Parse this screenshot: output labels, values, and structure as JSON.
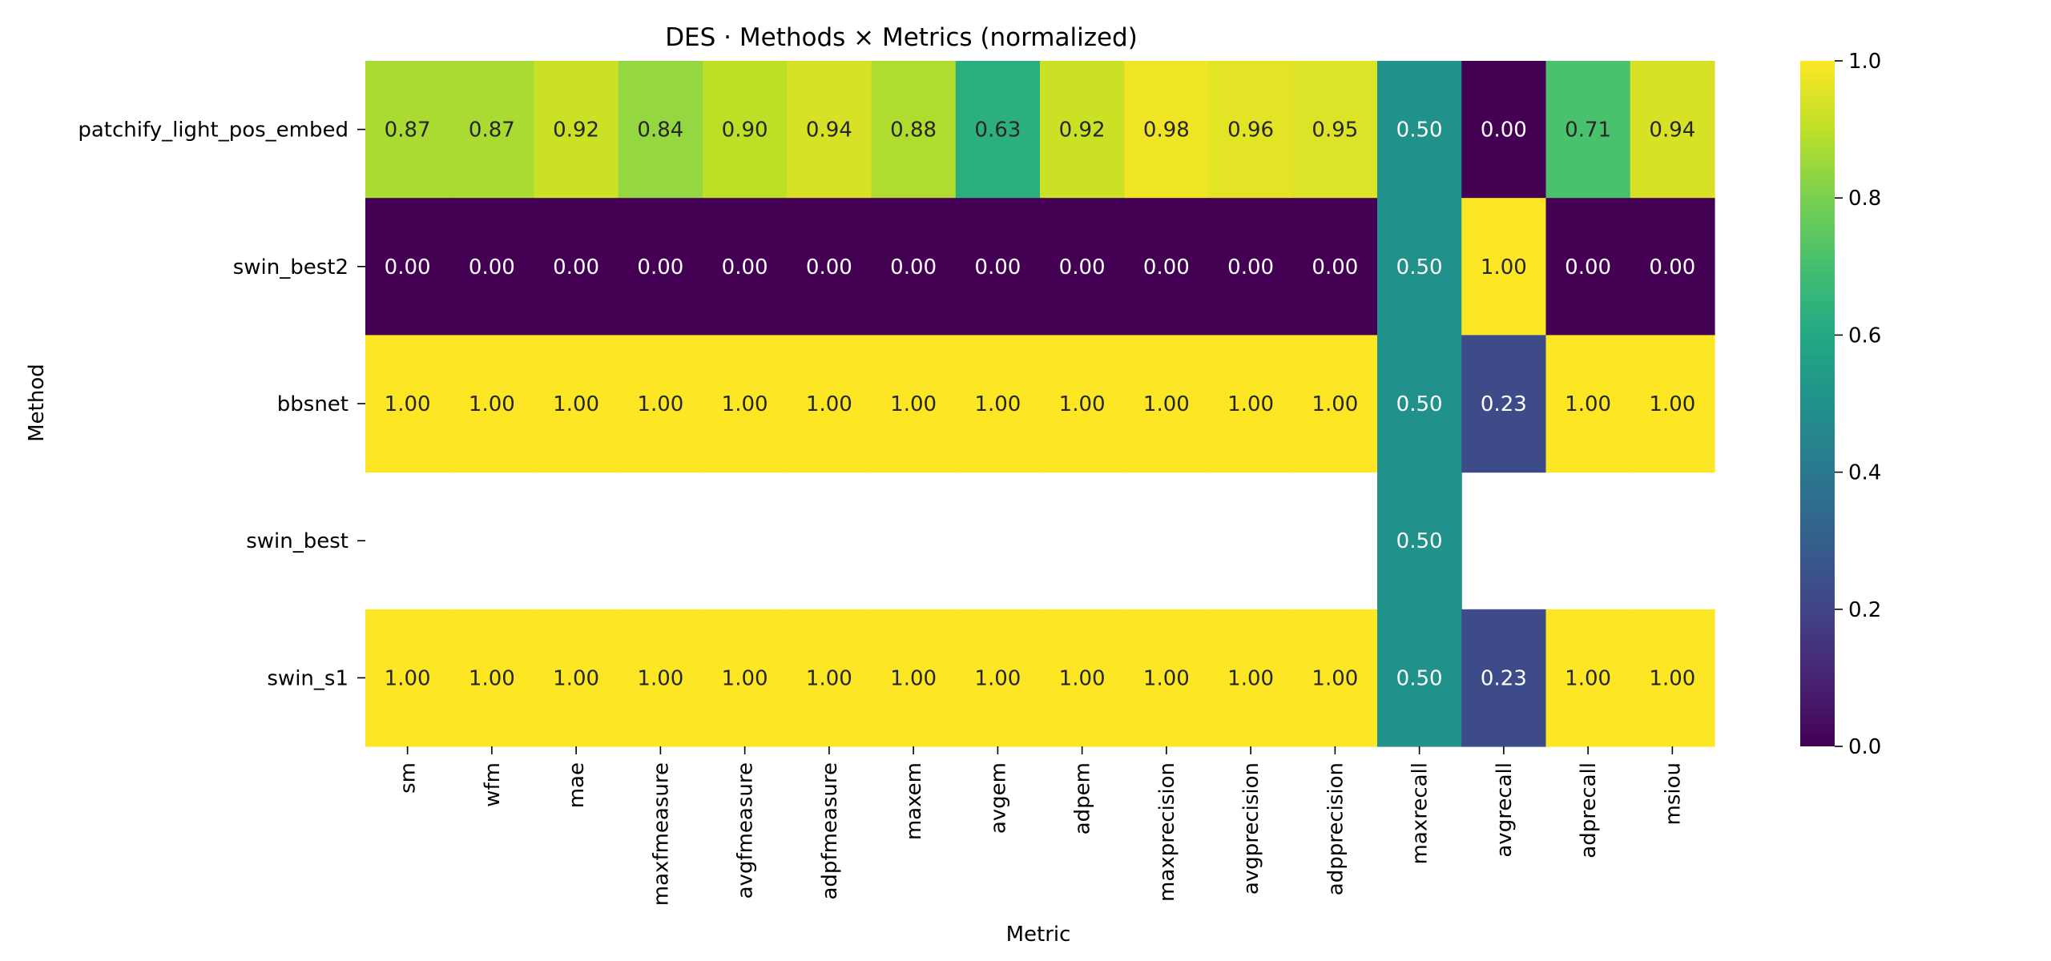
{
  "chart_data": {
    "type": "heatmap",
    "title": "DES · Methods × Metrics (normalized)",
    "xlabel": "Metric",
    "ylabel": "Method",
    "rows": [
      "patchify_light_pos_embed",
      "swin_best2",
      "bbsnet",
      "swin_best",
      "swin_s1"
    ],
    "columns": [
      "sm",
      "wfm",
      "mae",
      "maxfmeasure",
      "avgfmeasure",
      "adpfmeasure",
      "maxem",
      "avgem",
      "adpem",
      "maxprecision",
      "avgprecision",
      "adpprecision",
      "maxrecall",
      "avgrecall",
      "adprecall",
      "msiou"
    ],
    "values": [
      [
        0.87,
        0.87,
        0.92,
        0.84,
        0.9,
        0.94,
        0.88,
        0.63,
        0.92,
        0.98,
        0.96,
        0.95,
        0.5,
        0.0,
        0.71,
        0.94
      ],
      [
        0.0,
        0.0,
        0.0,
        0.0,
        0.0,
        0.0,
        0.0,
        0.0,
        0.0,
        0.0,
        0.0,
        0.0,
        0.5,
        1.0,
        0.0,
        0.0
      ],
      [
        1.0,
        1.0,
        1.0,
        1.0,
        1.0,
        1.0,
        1.0,
        1.0,
        1.0,
        1.0,
        1.0,
        1.0,
        0.5,
        0.23,
        1.0,
        1.0
      ],
      [
        null,
        null,
        null,
        null,
        null,
        null,
        null,
        null,
        null,
        null,
        null,
        null,
        0.5,
        null,
        null,
        null
      ],
      [
        1.0,
        1.0,
        1.0,
        1.0,
        1.0,
        1.0,
        1.0,
        1.0,
        1.0,
        1.0,
        1.0,
        1.0,
        0.5,
        0.23,
        1.0,
        1.0
      ]
    ],
    "value_format": "0.00",
    "colormap": "viridis",
    "colorbar": {
      "range": [
        0.0,
        1.0
      ],
      "ticks": [
        "0.0",
        "0.2",
        "0.4",
        "0.6",
        "0.8",
        "1.0"
      ]
    }
  }
}
